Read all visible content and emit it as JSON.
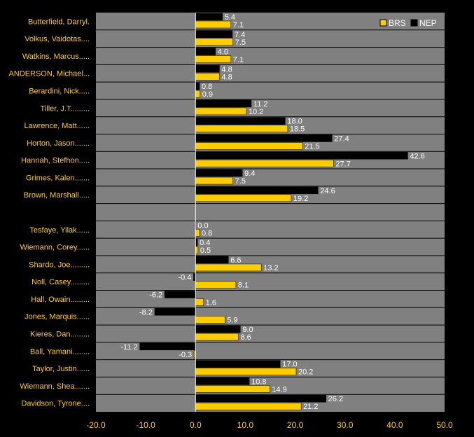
{
  "chart_data": {
    "type": "bar",
    "orientation": "horizontal",
    "title": "",
    "xlabel": "",
    "ylabel": "",
    "xlim": [
      -20,
      50
    ],
    "x_ticks": [
      "-20.0",
      "-10.0",
      "0.0",
      "10.0",
      "20.0",
      "30.0",
      "40.0",
      "50.0"
    ],
    "grid": "horizontal row separators",
    "legend_position": "top-right",
    "categories": [
      "Butterfield, Darryl.",
      "Volkus, Vaidotas....",
      "Watkins, Marcus.....",
      "ANDERSON, Michael...",
      "Berardini, Nick.....",
      "Tiller, J.T.........",
      "Lawrence, Matt......",
      "Horton, Jason.......",
      "Hannah, Stefhon.....",
      "Grimes, Kalen.......",
      "Brown, Marshall.....",
      "",
      "Tesfaye, Yilak......",
      "Wiemann, Corey......",
      "Shardo, Joe.........",
      "Noll, Casey.........",
      "Hall, Owain.........",
      "Jones, Marquis......",
      "Kieres, Dan.........",
      "Ball, Yamani........",
      "Taylor, Justin......",
      "Wiemann, Shea.......",
      "Davidson, Tyrone...."
    ],
    "series": [
      {
        "name": "NEP",
        "color": "#000000",
        "values": [
          5.4,
          7.4,
          4.0,
          4.8,
          0.8,
          11.2,
          18.0,
          27.4,
          42.6,
          9.4,
          24.6,
          null,
          0.0,
          0.4,
          6.6,
          -0.4,
          -6.2,
          -8.2,
          9.0,
          -11.2,
          17.0,
          10.8,
          26.2
        ],
        "labels": [
          "5.4",
          "7.4",
          "4.0",
          "4.8",
          "0.8",
          "11.2",
          "18.0",
          "27.4",
          "42.6",
          "9.4",
          "24.6",
          "",
          "0.0",
          "0.4",
          "6.6",
          "-0.4",
          "-6.2",
          "-8.2",
          "9.0",
          "-11.2",
          "17.0",
          "10.8",
          "26.2"
        ]
      },
      {
        "name": "BRS",
        "color": "#ffcc00",
        "values": [
          7.1,
          7.5,
          7.1,
          4.8,
          0.9,
          10.2,
          18.5,
          21.5,
          27.7,
          7.5,
          19.2,
          null,
          0.8,
          0.5,
          13.2,
          8.1,
          1.6,
          5.9,
          8.6,
          -0.3,
          20.2,
          14.9,
          21.2
        ],
        "labels": [
          "7.1",
          "7.5",
          "7.1",
          "4.8",
          "0.9",
          "10.2",
          "18.5",
          "21.5",
          "27.7",
          "7.5",
          "19.2",
          "",
          "0.8",
          "0.5",
          "13.2",
          "8.1",
          "1.6",
          "5.9",
          "8.6",
          "-0.3",
          "20.2",
          "14.9",
          "21.2"
        ]
      }
    ],
    "legend": [
      {
        "name": "BRS",
        "color": "#ffcc00"
      },
      {
        "name": "NEP",
        "color": "#000000"
      }
    ],
    "colors": {
      "page_background": "#000000",
      "plot_background": "#808080",
      "row_separator": "#000000",
      "zero_line": "#ffffff",
      "category_text": "#ffcc33",
      "tick_text": "#ffcc33",
      "data_label_text": "#ffffff"
    }
  }
}
